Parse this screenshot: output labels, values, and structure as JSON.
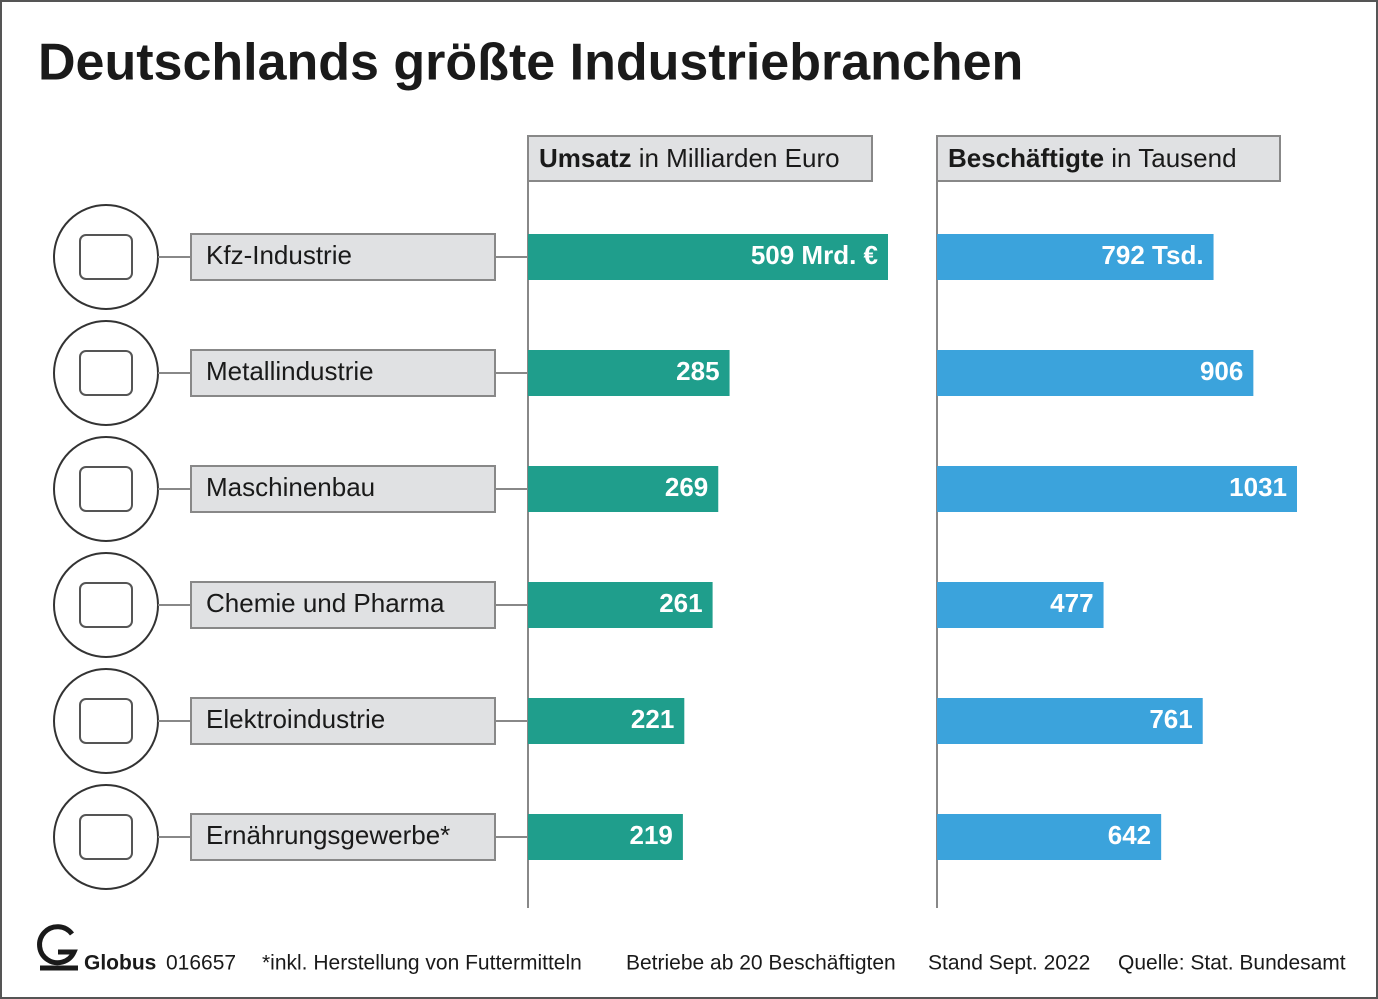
{
  "chart_data": {
    "type": "bar",
    "title": "Deutschlands größte Industriebranchen",
    "categories": [
      "Kfz-Industrie",
      "Metallindustrie",
      "Maschinenbau",
      "Chemie und Pharma",
      "Elektroindustrie",
      "Ernährungsgewerbe*"
    ],
    "series": [
      {
        "name": "Umsatz",
        "unit": "in Milliarden Euro",
        "color": "#1f9e8c",
        "values": [
          509,
          285,
          269,
          261,
          221,
          219
        ],
        "value_labels": [
          "509 Mrd. €",
          "285",
          "269",
          "261",
          "221",
          "219"
        ]
      },
      {
        "name": "Beschäftigte",
        "unit": "in Tausend",
        "color": "#3ba3dc",
        "values": [
          792,
          906,
          1031,
          477,
          761,
          642
        ],
        "value_labels": [
          "792 Tsd.",
          "906",
          "1031",
          "477",
          "761",
          "642"
        ]
      }
    ],
    "footer": {
      "brand": "Globus",
      "id": "016657",
      "notes": [
        "*inkl. Herstellung von Futtermitteln",
        "Betriebe ab 20 Beschäftigten",
        "Stand Sept. 2022",
        "Quelle: Stat. Bundesamt"
      ]
    }
  }
}
